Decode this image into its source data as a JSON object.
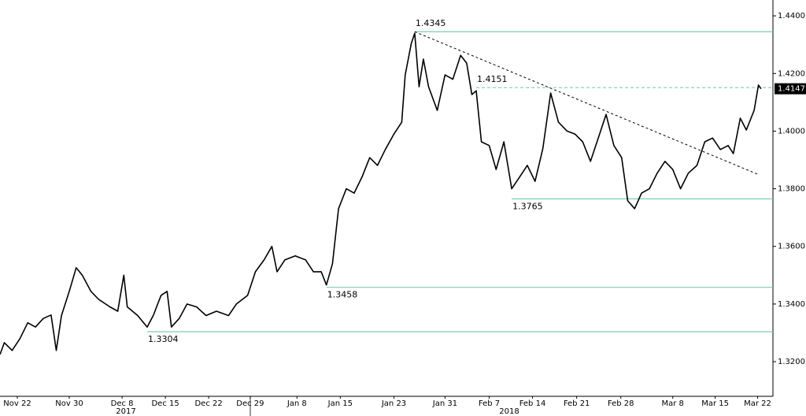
{
  "chart_data": {
    "type": "line",
    "color": "#000000",
    "level_color": "#7fcab8",
    "x": [
      -2,
      -1.5,
      -0.6,
      0.3,
      1.2,
      2.1,
      3,
      3.9,
      4.5,
      5.1,
      6,
      6.8,
      7.5,
      8.5,
      9.4,
      10.7,
      11.6,
      12.3,
      12.7,
      13.9,
      15,
      15.7,
      16.6,
      17.3,
      17.8,
      18.7,
      19.6,
      20.7,
      21.8,
      23,
      24.4,
      25.3,
      26.6,
      27.5,
      28.5,
      29.4,
      30,
      30.9,
      32.1,
      33.3,
      34.2,
      35.1,
      35.7,
      36.4,
      37.1,
      38,
      38.9,
      39.8,
      40.7,
      41.6,
      42.5,
      43.5,
      44.4,
      44.8,
      45.5,
      45.9,
      46.4,
      46.9,
      47.5,
      48.5,
      49.4,
      50.3,
      51.2,
      51.9,
      52.5,
      53,
      53.6,
      54.5,
      55.3,
      56.2,
      57.1,
      58,
      58.9,
      59.8,
      60.7,
      61.6,
      62.5,
      63.5,
      64.4,
      65.3,
      66.2,
      67.1,
      68,
      68.9,
      69.8,
      70.5,
      71.3,
      72.1,
      73,
      73.9,
      74.8,
      75.7,
      76.6,
      77.5,
      78.5,
      79.4,
      80.3,
      81.2,
      82.1,
      82.7,
      83.5,
      84.2,
      85.1,
      85.6,
      85.9
    ],
    "values": [
      1.3225,
      1.3266,
      1.3239,
      1.328,
      1.3335,
      1.332,
      1.335,
      1.3362,
      1.3239,
      1.336,
      1.3444,
      1.3526,
      1.35,
      1.3444,
      1.3416,
      1.339,
      1.3375,
      1.35,
      1.339,
      1.336,
      1.332,
      1.336,
      1.343,
      1.3444,
      1.332,
      1.335,
      1.34,
      1.339,
      1.336,
      1.3375,
      1.336,
      1.34,
      1.343,
      1.3512,
      1.3553,
      1.36,
      1.3512,
      1.3553,
      1.3567,
      1.3553,
      1.3512,
      1.3512,
      1.3466,
      1.354,
      1.3731,
      1.38,
      1.3785,
      1.384,
      1.3908,
      1.3881,
      1.3936,
      1.399,
      1.4031,
      1.4195,
      1.4304,
      1.434,
      1.4154,
      1.425,
      1.4154,
      1.4072,
      1.4195,
      1.418,
      1.4263,
      1.4236,
      1.4127,
      1.414,
      1.3963,
      1.395,
      1.3867,
      1.3963,
      1.38,
      1.384,
      1.3881,
      1.3826,
      1.394,
      1.4132,
      1.4031,
      1.4,
      1.399,
      1.3963,
      1.3895,
      1.3976,
      1.4058,
      1.395,
      1.3908,
      1.3758,
      1.3731,
      1.3785,
      1.38,
      1.3854,
      1.3895,
      1.3867,
      1.38,
      1.3854,
      1.3881,
      1.3963,
      1.3976,
      1.3936,
      1.395,
      1.3922,
      1.4045,
      1.4004,
      1.4072,
      1.416,
      1.4147
    ],
    "xlim": [
      -2,
      87.27
    ],
    "ylim": [
      1.3088,
      1.4455
    ],
    "xticks": [
      {
        "value": 0,
        "label": "Nov 22"
      },
      {
        "value": 6,
        "label": "Nov 30"
      },
      {
        "value": 12.1,
        "label": "Dec 8"
      },
      {
        "value": 17.1,
        "label": "Dec 15"
      },
      {
        "value": 22.1,
        "label": "Dec 22"
      },
      {
        "value": 26.9,
        "label": "Dec 29"
      },
      {
        "value": 32.3,
        "label": "Jan 8"
      },
      {
        "value": 37.3,
        "label": "Jan 15"
      },
      {
        "value": 43.5,
        "label": "Jan 23"
      },
      {
        "value": 49.4,
        "label": "Jan 31"
      },
      {
        "value": 54.5,
        "label": "Feb 7"
      },
      {
        "value": 59.5,
        "label": "Feb 14"
      },
      {
        "value": 64.6,
        "label": "Feb 21"
      },
      {
        "value": 69.7,
        "label": "Feb 28"
      },
      {
        "value": 75.7,
        "label": "Mar 8"
      },
      {
        "value": 80.6,
        "label": "Mar 15"
      },
      {
        "value": 85.5,
        "label": "Mar 22"
      }
    ],
    "yticks": [
      {
        "value": 1.32,
        "label": "1.3200"
      },
      {
        "value": 1.34,
        "label": "1.3400"
      },
      {
        "value": 1.36,
        "label": "1.3600"
      },
      {
        "value": 1.38,
        "label": "1.3800"
      },
      {
        "value": 1.4,
        "label": "1.4000"
      },
      {
        "value": 1.42,
        "label": "1.4200"
      },
      {
        "value": 1.44,
        "label": "1.4400"
      }
    ],
    "years": [
      "2017",
      "2018"
    ],
    "levels": [
      {
        "value": 1.4345,
        "x": 45.9,
        "style": "solid",
        "label_position": "above"
      },
      {
        "value": 1.4151,
        "x": 53,
        "style": "dashed",
        "label_position": "above"
      },
      {
        "value": 1.3765,
        "x": 57.1,
        "style": "solid",
        "label_position": "below"
      },
      {
        "value": 1.3458,
        "x": 35.7,
        "style": "solid",
        "label_position": "below"
      },
      {
        "value": 1.3304,
        "x": 15,
        "style": "solid",
        "label_position": "below"
      }
    ],
    "trendline": {
      "x": [
        45.9,
        85.7
      ],
      "values": [
        1.4345,
        1.3848
      ]
    },
    "last_price": {
      "value": 1.4147,
      "label": "1.4147"
    }
  }
}
